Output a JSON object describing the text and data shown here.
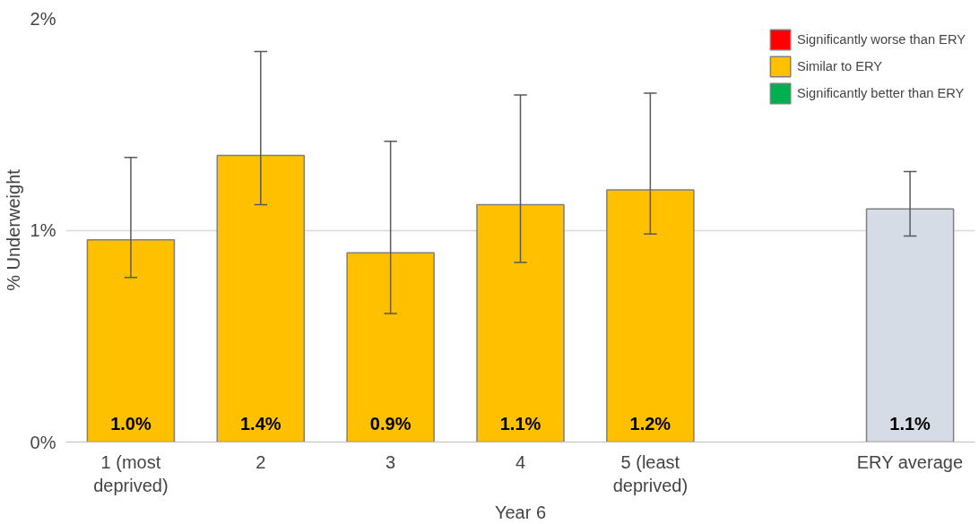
{
  "chart_data": {
    "type": "bar",
    "stacked": true,
    "xlabel": "Year 6",
    "ylabel": "% Underweight",
    "categories": [
      "1 (most\ndeprived)",
      "2",
      "3",
      "4",
      "5 (least\ndeprived)",
      null,
      "ERY average"
    ],
    "series": [
      {
        "name": "Significantly worse than ERY",
        "color": "#ff0000",
        "values": [
          null,
          null,
          null,
          null,
          null,
          null,
          null
        ]
      },
      {
        "name": "Similar to ERY",
        "color": "#ffc000",
        "values": [
          0.955,
          1.353,
          0.893,
          1.12,
          1.19,
          null,
          null
        ],
        "errors": [
          [
            0.777,
            1.344
          ],
          [
            1.12,
            1.844
          ],
          [
            0.607,
            1.42
          ],
          [
            0.848,
            1.638
          ],
          [
            0.982,
            1.647
          ],
          null,
          null
        ],
        "value_labels": [
          "1.0%",
          "1.4%",
          "0.9%",
          "1.1%",
          "1.2%",
          null,
          null
        ]
      },
      {
        "name": "Significantly better than ERY",
        "color": "#00b050",
        "values": [
          null,
          null,
          null,
          null,
          null,
          null,
          null
        ]
      },
      {
        "color": "#d6dce5",
        "values": [
          null,
          null,
          null,
          null,
          null,
          null,
          1.1
        ],
        "errors": [
          null,
          null,
          null,
          null,
          null,
          null,
          [
            0.973,
            1.277
          ]
        ],
        "value_labels": [
          null,
          null,
          null,
          null,
          null,
          null,
          "1.1%"
        ]
      }
    ],
    "ylim": [
      0,
      2
    ],
    "yticks": [
      {
        "value": 0,
        "label": "0%"
      },
      {
        "value": 1,
        "label": "1%"
      },
      {
        "value": 2,
        "label": "2%"
      }
    ],
    "grid": "y",
    "legend": "top right"
  }
}
